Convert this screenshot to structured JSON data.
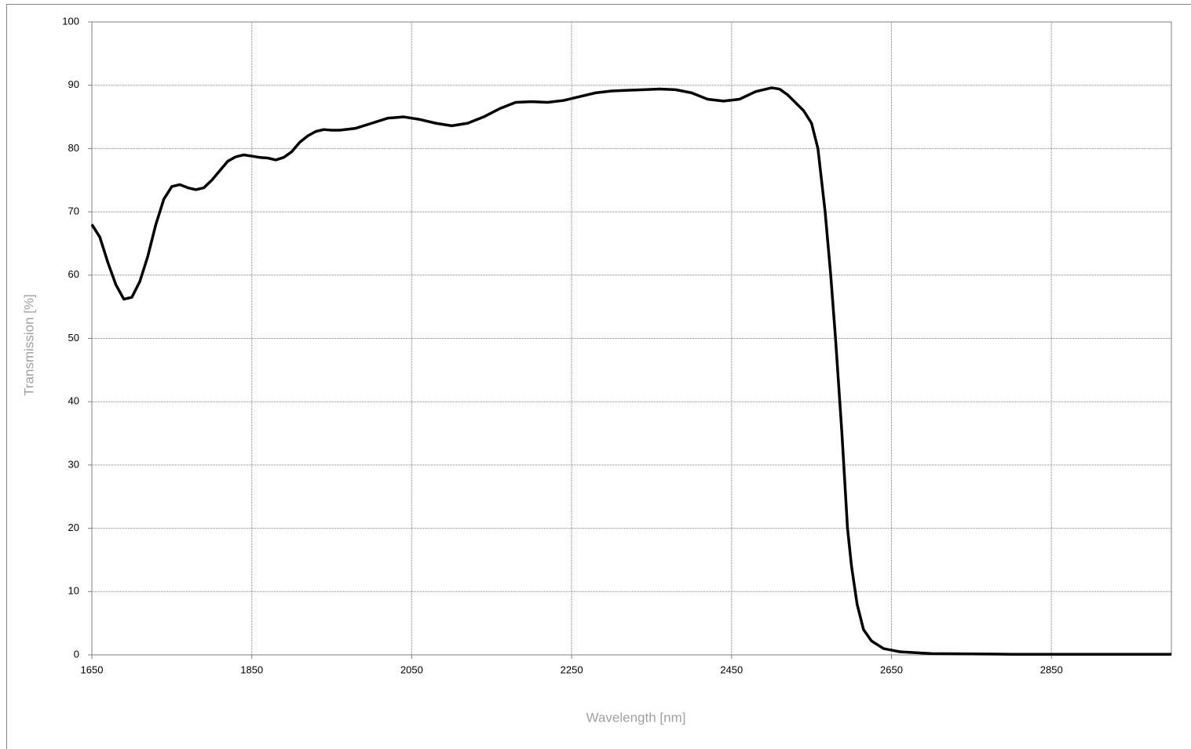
{
  "chart_data": {
    "type": "line",
    "x_label": "Wavelength [nm]",
    "y_label": "Transmission [%]",
    "x": [
      1650,
      1660,
      1670,
      1680,
      1690,
      1700,
      1710,
      1720,
      1730,
      1740,
      1750,
      1760,
      1770,
      1780,
      1790,
      1800,
      1810,
      1820,
      1830,
      1840,
      1850,
      1860,
      1870,
      1880,
      1890,
      1900,
      1910,
      1920,
      1930,
      1940,
      1950,
      1960,
      1980,
      2000,
      2020,
      2040,
      2060,
      2080,
      2100,
      2120,
      2140,
      2160,
      2180,
      2200,
      2220,
      2240,
      2260,
      2280,
      2300,
      2320,
      2340,
      2360,
      2380,
      2400,
      2420,
      2440,
      2460,
      2480,
      2500,
      2510,
      2520,
      2540,
      2550,
      2558,
      2567,
      2574,
      2580,
      2588,
      2595,
      2600,
      2607,
      2615,
      2625,
      2640,
      2660,
      2700,
      2800,
      3000
    ],
    "series": [
      {
        "color": "#000000",
        "values": [
          68,
          66,
          62,
          58.5,
          56.2,
          56.5,
          59,
          63,
          68,
          72,
          74,
          74.3,
          73.8,
          73.5,
          73.8,
          75,
          76.5,
          78,
          78.7,
          79,
          78.8,
          78.6,
          78.5,
          78.2,
          78.6,
          79.5,
          81,
          82,
          82.7,
          83,
          82.9,
          82.9,
          83.2,
          84,
          84.8,
          85,
          84.6,
          84,
          83.6,
          84,
          85,
          86.3,
          87.3,
          87.4,
          87.3,
          87.6,
          88.2,
          88.8,
          89.1,
          89.2,
          89.3,
          89.4,
          89.3,
          88.8,
          87.8,
          87.5,
          87.8,
          89,
          89.6,
          89.4,
          88.5,
          86,
          84,
          80,
          70,
          60,
          50,
          35,
          20,
          14,
          8,
          4,
          2.2,
          1,
          0.5,
          0.2,
          0.1,
          0.1
        ]
      }
    ],
    "xlim": [
      1650,
      3000
    ],
    "xticks": [
      1650,
      1850,
      2050,
      2250,
      2450,
      2650,
      2850
    ],
    "ylim": [
      0,
      100
    ],
    "yticks": [
      0,
      10,
      20,
      30,
      40,
      50,
      60,
      70,
      80,
      90,
      100
    ],
    "grid": true
  }
}
